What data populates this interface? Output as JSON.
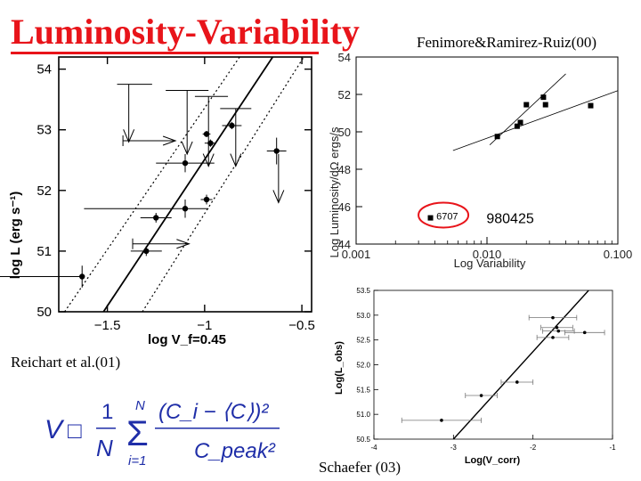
{
  "slide": {
    "title": "Luminosity-Variability",
    "caption_top_right": "Fenimore&Ramirez-Ruiz(00)",
    "caption_left": "Reichart et al.(01)",
    "caption_bottom_right": "Schaefer (03)",
    "accent_color": "#e8141a",
    "formula_color": "#1f2ea8"
  },
  "formula": {
    "lhs": "V",
    "approx_symbol": "□",
    "frac_num": "1",
    "frac_den": "N",
    "sum_upper": "N",
    "sum_lower": "i=1",
    "term_num": "(C_i − ⟨C⟩)²",
    "term_den": "C_peak²"
  },
  "chart_data": [
    {
      "type": "scatter",
      "title": "",
      "xlabel": "log V_f=0.45",
      "ylabel": "log L (erg s⁻¹)",
      "xlim": [
        -1.75,
        -0.45
      ],
      "ylim": [
        50,
        54.2
      ],
      "xticks": [
        -1.5,
        -1,
        -0.5
      ],
      "xtick_labels": [
        "−1.5",
        "−1",
        "−0.5"
      ],
      "yticks": [
        50,
        51,
        52,
        53,
        54
      ],
      "points": [
        {
          "x": -1.63,
          "y": 50.58,
          "xerr": [
            0.45,
            0.0
          ],
          "yerr": 0.18
        },
        {
          "x": -1.3,
          "y": 51.0,
          "xerr": [
            0.08,
            0.08
          ],
          "yerr": 0.08
        },
        {
          "x": -1.25,
          "y": 51.55,
          "xerr": [
            0.08,
            0.08
          ],
          "yerr": 0.08
        },
        {
          "x": -1.1,
          "y": 51.7,
          "xerr": [
            0.52,
            0.12
          ],
          "yerr": 0.15
        },
        {
          "x": -0.99,
          "y": 51.85,
          "xerr": [
            0.03,
            0.03
          ],
          "yerr": 0.08
        },
        {
          "x": -1.1,
          "y": 52.45,
          "xerr": [
            0.15,
            0.15
          ],
          "yerr": 0.15
        },
        {
          "x": -0.97,
          "y": 52.78,
          "xerr": [
            0.03,
            0.03
          ],
          "yerr": 0.06
        },
        {
          "x": -0.99,
          "y": 52.93,
          "xerr": [
            0.02,
            0.02
          ],
          "yerr": 0.05
        },
        {
          "x": -0.86,
          "y": 53.07,
          "xerr": [
            0.05,
            0.05
          ],
          "yerr": 0.06
        },
        {
          "x": -0.63,
          "y": 52.65,
          "xerr": [
            0.05,
            0.05
          ],
          "yerr": 0.22
        }
      ],
      "upper_limits": [
        {
          "x0": -1.45,
          "x1": -1.27,
          "x": -1.39,
          "y": 53.75,
          "y_end": 52.8
        },
        {
          "x0": -1.2,
          "x1": -0.98,
          "x": -1.09,
          "y": 53.65,
          "y_end": 52.6
        },
        {
          "x0": -1.05,
          "x1": -0.88,
          "x": -0.98,
          "y": 53.55,
          "y_end": 52.4
        },
        {
          "x0": -0.92,
          "x1": -0.76,
          "x": -0.84,
          "y": 53.35,
          "y_end": 52.4
        },
        {
          "x0": -0.62,
          "x1": -0.62,
          "x": -0.62,
          "y": 52.6,
          "y_end": 51.8
        }
      ],
      "lower_limits_x": [
        {
          "x": -1.42,
          "y": 52.82,
          "x_end": -1.15
        },
        {
          "x": -1.37,
          "y": 51.12,
          "x_end": -1.08
        }
      ],
      "fit_line": {
        "x": [
          -1.52,
          -0.65
        ],
        "y": [
          50.0,
          54.2
        ]
      },
      "band_lines": [
        {
          "x": [
            -1.72,
            -0.82
          ],
          "y": [
            50.0,
            54.2
          ]
        },
        {
          "x": [
            -1.32,
            -0.49
          ],
          "y": [
            50.0,
            54.2
          ]
        }
      ]
    },
    {
      "type": "scatter",
      "title": "",
      "xlabel": "Log Variability",
      "ylabel": "Log Luminosity/dΩ ergs/s",
      "xscale": "log",
      "xlim": [
        0.001,
        0.1
      ],
      "xticks": [
        0.001,
        0.01,
        0.1
      ],
      "xtick_labels": [
        "0.001",
        "0.010",
        "0.100"
      ],
      "ylim": [
        44,
        54
      ],
      "yticks": [
        44,
        46,
        48,
        50,
        52,
        54
      ],
      "points": [
        {
          "x": 0.0037,
          "y": 45.4
        },
        {
          "x": 0.012,
          "y": 49.75
        },
        {
          "x": 0.017,
          "y": 50.3
        },
        {
          "x": 0.018,
          "y": 50.5
        },
        {
          "x": 0.02,
          "y": 51.45
        },
        {
          "x": 0.027,
          "y": 51.85
        },
        {
          "x": 0.028,
          "y": 51.45
        },
        {
          "x": 0.062,
          "y": 51.4
        }
      ],
      "fit_lines": [
        {
          "x": [
            0.0055,
            0.1
          ],
          "y": [
            49.0,
            52.2
          ]
        },
        {
          "x": [
            0.0105,
            0.04
          ],
          "y": [
            49.3,
            53.1
          ]
        }
      ],
      "annotations": [
        {
          "text": "6707",
          "x": 0.0041,
          "y": 45.55
        },
        {
          "text": "980425",
          "x": 0.0099,
          "y": 45.35
        }
      ]
    },
    {
      "type": "scatter",
      "title": "",
      "xlabel": "Log(V_corr)",
      "ylabel": "Log(L_obs)",
      "xlim": [
        -4,
        -1
      ],
      "ylim": [
        50.5,
        53.5
      ],
      "xticks": [
        -4,
        -3,
        -2,
        -1
      ],
      "yticks": [
        50.5,
        51.0,
        51.5,
        52.0,
        52.5,
        53.0,
        53.5
      ],
      "ytick_labels": [
        "50.5",
        "51.0",
        "51.5",
        "52.0",
        "52.5",
        "53.0",
        "53.5"
      ],
      "points": [
        {
          "x": -3.15,
          "y": 50.88,
          "xerr": 0.5,
          "yerr": 0.03
        },
        {
          "x": -2.65,
          "y": 51.38,
          "xerr": 0.2,
          "yerr": 0.03
        },
        {
          "x": -2.2,
          "y": 51.65,
          "xerr": 0.2,
          "yerr": 0.03
        },
        {
          "x": -1.75,
          "y": 52.95,
          "xerr": 0.3,
          "yerr": 0.03
        },
        {
          "x": -1.7,
          "y": 52.75,
          "xerr": 0.2,
          "yerr": 0.03
        },
        {
          "x": -1.75,
          "y": 52.55,
          "xerr": 0.2,
          "yerr": 0.03
        },
        {
          "x": -1.68,
          "y": 52.68,
          "xerr": 0.2,
          "yerr": 0.03
        },
        {
          "x": -1.35,
          "y": 52.65,
          "xerr": 0.25,
          "yerr": 0.03
        }
      ],
      "fit_line": {
        "x": [
          -3.0,
          -1.3
        ],
        "y": [
          50.5,
          53.5
        ]
      }
    }
  ]
}
